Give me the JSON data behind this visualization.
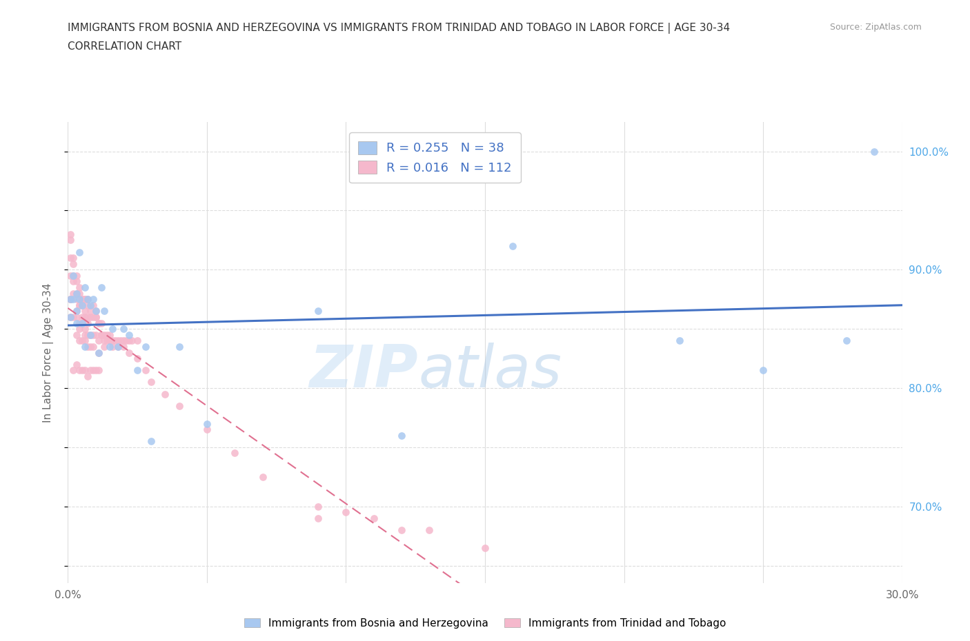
{
  "title_line1": "IMMIGRANTS FROM BOSNIA AND HERZEGOVINA VS IMMIGRANTS FROM TRINIDAD AND TOBAGO IN LABOR FORCE | AGE 30-34",
  "title_line2": "CORRELATION CHART",
  "source": "Source: ZipAtlas.com",
  "ylabel": "In Labor Force | Age 30-34",
  "xlim": [
    0.0,
    0.3
  ],
  "ylim": [
    0.635,
    1.025
  ],
  "xticks": [
    0.0,
    0.05,
    0.1,
    0.15,
    0.2,
    0.25,
    0.3
  ],
  "xticklabels": [
    "0.0%",
    "",
    "",
    "",
    "",
    "",
    "30.0%"
  ],
  "yticks": [
    0.65,
    0.7,
    0.75,
    0.8,
    0.85,
    0.9,
    0.95,
    1.0
  ],
  "yticklabels": [
    "",
    "70.0%",
    "",
    "80.0%",
    "",
    "90.0%",
    "",
    "100.0%"
  ],
  "bosnia_color": "#a8c8f0",
  "trinidad_color": "#f5b8cc",
  "bosnia_line_color": "#4472c4",
  "trinidad_line_color": "#e07090",
  "R_bosnia": 0.255,
  "N_bosnia": 38,
  "R_trinidad": 0.016,
  "N_trinidad": 112,
  "legend_label_bosnia": "Immigrants from Bosnia and Herzegovina",
  "legend_label_trinidad": "Immigrants from Trinidad and Tobago",
  "watermark_zip": "ZIP",
  "watermark_atlas": "atlas",
  "bosnia_x": [
    0.001,
    0.001,
    0.002,
    0.002,
    0.003,
    0.003,
    0.003,
    0.004,
    0.004,
    0.005,
    0.005,
    0.006,
    0.006,
    0.007,
    0.008,
    0.008,
    0.009,
    0.01,
    0.011,
    0.012,
    0.013,
    0.015,
    0.016,
    0.018,
    0.02,
    0.022,
    0.025,
    0.028,
    0.03,
    0.04,
    0.05,
    0.09,
    0.12,
    0.16,
    0.22,
    0.25,
    0.28,
    0.29
  ],
  "bosnia_y": [
    0.875,
    0.86,
    0.895,
    0.875,
    0.88,
    0.865,
    0.855,
    0.875,
    0.915,
    0.855,
    0.87,
    0.885,
    0.835,
    0.875,
    0.87,
    0.845,
    0.875,
    0.865,
    0.83,
    0.885,
    0.865,
    0.835,
    0.85,
    0.835,
    0.85,
    0.845,
    0.815,
    0.835,
    0.755,
    0.835,
    0.77,
    0.865,
    0.76,
    0.92,
    0.84,
    0.815,
    0.84,
    1.0
  ],
  "trinidad_x": [
    0.001,
    0.001,
    0.001,
    0.001,
    0.001,
    0.002,
    0.002,
    0.002,
    0.002,
    0.003,
    0.003,
    0.003,
    0.003,
    0.003,
    0.004,
    0.004,
    0.004,
    0.004,
    0.004,
    0.005,
    0.005,
    0.005,
    0.005,
    0.006,
    0.006,
    0.006,
    0.006,
    0.006,
    0.007,
    0.007,
    0.007,
    0.007,
    0.008,
    0.008,
    0.008,
    0.009,
    0.009,
    0.009,
    0.01,
    0.01,
    0.01,
    0.011,
    0.011,
    0.011,
    0.012,
    0.012,
    0.013,
    0.013,
    0.014,
    0.015,
    0.015,
    0.016,
    0.017,
    0.018,
    0.019,
    0.02,
    0.021,
    0.022,
    0.023,
    0.025,
    0.001,
    0.001,
    0.001,
    0.002,
    0.002,
    0.003,
    0.003,
    0.004,
    0.004,
    0.005,
    0.005,
    0.006,
    0.006,
    0.007,
    0.007,
    0.008,
    0.009,
    0.01,
    0.011,
    0.012,
    0.013,
    0.014,
    0.015,
    0.016,
    0.018,
    0.02,
    0.022,
    0.025,
    0.028,
    0.03,
    0.035,
    0.04,
    0.05,
    0.06,
    0.07,
    0.09,
    0.1,
    0.11,
    0.13,
    0.15,
    0.09,
    0.12,
    0.005,
    0.006,
    0.007,
    0.003,
    0.004,
    0.002,
    0.008,
    0.009,
    0.01,
    0.011
  ],
  "trinidad_y": [
    0.875,
    0.895,
    0.925,
    0.875,
    0.86,
    0.89,
    0.905,
    0.88,
    0.86,
    0.88,
    0.895,
    0.86,
    0.845,
    0.865,
    0.88,
    0.87,
    0.855,
    0.84,
    0.85,
    0.875,
    0.86,
    0.855,
    0.84,
    0.875,
    0.86,
    0.85,
    0.84,
    0.845,
    0.875,
    0.855,
    0.845,
    0.835,
    0.865,
    0.845,
    0.835,
    0.87,
    0.845,
    0.835,
    0.865,
    0.845,
    0.86,
    0.855,
    0.84,
    0.83,
    0.855,
    0.845,
    0.845,
    0.835,
    0.845,
    0.845,
    0.84,
    0.84,
    0.84,
    0.84,
    0.84,
    0.84,
    0.84,
    0.84,
    0.84,
    0.84,
    0.93,
    0.91,
    0.875,
    0.91,
    0.895,
    0.89,
    0.875,
    0.885,
    0.87,
    0.875,
    0.87,
    0.875,
    0.865,
    0.87,
    0.86,
    0.86,
    0.86,
    0.86,
    0.855,
    0.845,
    0.84,
    0.84,
    0.84,
    0.835,
    0.835,
    0.835,
    0.83,
    0.825,
    0.815,
    0.805,
    0.795,
    0.785,
    0.765,
    0.745,
    0.725,
    0.7,
    0.695,
    0.69,
    0.68,
    0.665,
    0.69,
    0.68,
    0.815,
    0.815,
    0.81,
    0.82,
    0.815,
    0.815,
    0.815,
    0.815,
    0.815,
    0.815
  ]
}
